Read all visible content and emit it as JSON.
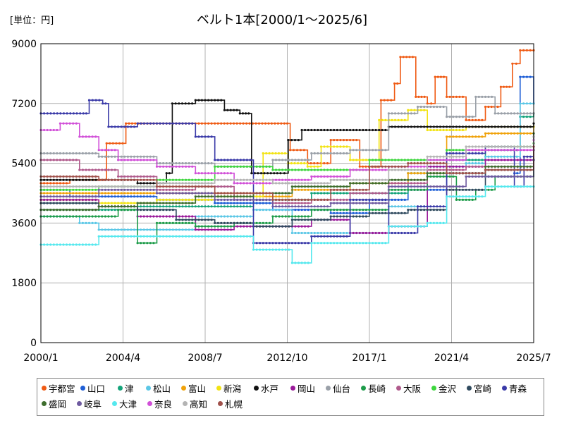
{
  "unit_label": "[単位：円]",
  "title": "ベルト1本[2000/1～2025/6]",
  "chart_data": {
    "type": "line",
    "title": "ベルト1本[2000/1～2025/6]",
    "ylabel": "[単位：円]",
    "ylim": [
      0,
      9000
    ],
    "xlim": [
      2000.0,
      2025.5
    ],
    "yticks": [
      0,
      1800,
      3600,
      5400,
      7200,
      9000
    ],
    "xticks": [
      {
        "value": 2000.0,
        "label": "2000/1"
      },
      {
        "value": 2004.25,
        "label": "2004/4"
      },
      {
        "value": 2008.5,
        "label": "2008/7"
      },
      {
        "value": 2012.75,
        "label": "2012/10"
      },
      {
        "value": 2017.0,
        "label": "2017/1"
      },
      {
        "value": 2021.25,
        "label": "2021/4"
      },
      {
        "value": 2025.5,
        "label": "2025/7"
      }
    ],
    "grid": true,
    "legend_position": "bottom",
    "series": [
      {
        "name": "宇都宮",
        "color": "#ef5b14",
        "points": [
          [
            2000.0,
            4800
          ],
          [
            2001.5,
            4900
          ],
          [
            2003.4,
            6000
          ],
          [
            2004.4,
            6600
          ],
          [
            2006.0,
            6600
          ],
          [
            2009.0,
            6600
          ],
          [
            2012.6,
            6600
          ],
          [
            2012.9,
            5800
          ],
          [
            2013.8,
            5400
          ],
          [
            2015.0,
            6100
          ],
          [
            2016.5,
            5300
          ],
          [
            2017.6,
            7300
          ],
          [
            2018.3,
            7800
          ],
          [
            2018.6,
            8600
          ],
          [
            2019.4,
            7400
          ],
          [
            2020.0,
            7200
          ],
          [
            2020.4,
            8000
          ],
          [
            2021.0,
            7400
          ],
          [
            2022.0,
            6700
          ],
          [
            2023.0,
            7100
          ],
          [
            2023.8,
            7700
          ],
          [
            2024.4,
            8400
          ],
          [
            2024.8,
            8800
          ],
          [
            2025.5,
            8800
          ]
        ]
      },
      {
        "name": "山口",
        "color": "#1f5fd6",
        "points": [
          [
            2000.0,
            4600
          ],
          [
            2001.5,
            4400
          ],
          [
            2003.0,
            4400
          ],
          [
            2006.0,
            4300
          ],
          [
            2009.0,
            4200
          ],
          [
            2012.0,
            4000
          ],
          [
            2015.0,
            3900
          ],
          [
            2017.0,
            4300
          ],
          [
            2019.0,
            4600
          ],
          [
            2021.0,
            5100
          ],
          [
            2023.0,
            5000
          ],
          [
            2024.5,
            5100
          ],
          [
            2024.8,
            8000
          ],
          [
            2025.5,
            7200
          ]
        ]
      },
      {
        "name": "津",
        "color": "#14a37a",
        "points": [
          [
            2000.0,
            4000
          ],
          [
            2003.0,
            4000
          ],
          [
            2005.0,
            4100
          ],
          [
            2008.0,
            4100
          ],
          [
            2011.0,
            4300
          ],
          [
            2014.0,
            4500
          ],
          [
            2017.0,
            4500
          ],
          [
            2019.0,
            5100
          ],
          [
            2021.0,
            5500
          ],
          [
            2023.0,
            5800
          ],
          [
            2024.8,
            6800
          ],
          [
            2025.5,
            6900
          ]
        ]
      },
      {
        "name": "松山",
        "color": "#5bc7e6",
        "points": [
          [
            2000.0,
            3800
          ],
          [
            2002.0,
            3600
          ],
          [
            2003.0,
            3400
          ],
          [
            2006.0,
            3400
          ],
          [
            2008.0,
            3800
          ],
          [
            2011.0,
            4000
          ],
          [
            2013.0,
            3300
          ],
          [
            2016.0,
            3300
          ],
          [
            2018.0,
            4100
          ],
          [
            2020.0,
            5300
          ],
          [
            2022.0,
            5400
          ],
          [
            2023.0,
            5600
          ],
          [
            2024.8,
            7200
          ],
          [
            2025.5,
            7200
          ]
        ]
      },
      {
        "name": "富山",
        "color": "#f0a20a",
        "points": [
          [
            2000.0,
            4500
          ],
          [
            2004.0,
            4500
          ],
          [
            2008.0,
            4500
          ],
          [
            2011.0,
            4400
          ],
          [
            2013.0,
            4600
          ],
          [
            2016.0,
            4800
          ],
          [
            2019.0,
            5100
          ],
          [
            2021.0,
            6200
          ],
          [
            2023.0,
            6300
          ],
          [
            2025.5,
            6500
          ]
        ]
      },
      {
        "name": "新潟",
        "color": "#f2e313",
        "points": [
          [
            2000.0,
            4300
          ],
          [
            2003.0,
            4200
          ],
          [
            2006.0,
            4300
          ],
          [
            2009.0,
            4400
          ],
          [
            2011.5,
            5700
          ],
          [
            2012.8,
            5400
          ],
          [
            2013.8,
            5300
          ],
          [
            2014.5,
            5900
          ],
          [
            2016.0,
            5500
          ],
          [
            2017.5,
            6700
          ],
          [
            2019.0,
            7000
          ],
          [
            2020.0,
            6400
          ],
          [
            2022.0,
            6500
          ],
          [
            2025.5,
            6500
          ]
        ]
      },
      {
        "name": "水戸",
        "color": "#111111",
        "points": [
          [
            2000.0,
            4900
          ],
          [
            2003.5,
            4900
          ],
          [
            2005.0,
            4800
          ],
          [
            2006.5,
            5100
          ],
          [
            2006.8,
            7200
          ],
          [
            2008.0,
            7300
          ],
          [
            2009.5,
            7000
          ],
          [
            2010.3,
            6900
          ],
          [
            2010.9,
            5100
          ],
          [
            2012.4,
            5100
          ],
          [
            2012.8,
            6100
          ],
          [
            2013.5,
            6400
          ],
          [
            2016.0,
            6400
          ],
          [
            2018.0,
            6500
          ],
          [
            2020.0,
            6500
          ],
          [
            2025.5,
            6600
          ]
        ]
      },
      {
        "name": "岡山",
        "color": "#9a1a9a",
        "points": [
          [
            2000.0,
            4300
          ],
          [
            2003.0,
            4100
          ],
          [
            2005.0,
            3800
          ],
          [
            2008.0,
            3400
          ],
          [
            2010.0,
            3500
          ],
          [
            2012.0,
            3500
          ],
          [
            2014.0,
            3700
          ],
          [
            2016.0,
            3300
          ],
          [
            2018.0,
            3500
          ],
          [
            2020.0,
            5300
          ],
          [
            2023.0,
            5500
          ],
          [
            2025.5,
            6200
          ]
        ]
      },
      {
        "name": "仙台",
        "color": "#9aa0a8",
        "points": [
          [
            2000.0,
            5700
          ],
          [
            2003.0,
            5600
          ],
          [
            2006.0,
            5400
          ],
          [
            2009.0,
            5300
          ],
          [
            2012.0,
            5500
          ],
          [
            2014.0,
            5700
          ],
          [
            2016.0,
            5800
          ],
          [
            2018.0,
            6900
          ],
          [
            2019.5,
            7100
          ],
          [
            2021.0,
            6800
          ],
          [
            2022.5,
            7400
          ],
          [
            2023.5,
            6900
          ],
          [
            2025.5,
            6900
          ]
        ]
      },
      {
        "name": "長崎",
        "color": "#1e9c4a",
        "points": [
          [
            2000.0,
            3800
          ],
          [
            2002.0,
            3800
          ],
          [
            2004.0,
            4000
          ],
          [
            2005.0,
            3000
          ],
          [
            2006.0,
            3600
          ],
          [
            2008.0,
            3500
          ],
          [
            2010.0,
            3600
          ],
          [
            2012.0,
            3800
          ],
          [
            2014.0,
            4000
          ],
          [
            2016.0,
            4000
          ],
          [
            2018.0,
            4600
          ],
          [
            2020.0,
            5000
          ],
          [
            2021.5,
            4300
          ],
          [
            2022.5,
            4600
          ],
          [
            2023.5,
            5000
          ],
          [
            2025.5,
            5500
          ]
        ]
      },
      {
        "name": "大阪",
        "color": "#b05a8c",
        "points": [
          [
            2000.0,
            5500
          ],
          [
            2002.0,
            5200
          ],
          [
            2004.0,
            5000
          ],
          [
            2006.0,
            4600
          ],
          [
            2008.0,
            4700
          ],
          [
            2010.0,
            4300
          ],
          [
            2012.0,
            4200
          ],
          [
            2014.0,
            4300
          ],
          [
            2016.0,
            4500
          ],
          [
            2018.0,
            4800
          ],
          [
            2020.0,
            5200
          ],
          [
            2022.0,
            5300
          ],
          [
            2025.5,
            6000
          ]
        ]
      },
      {
        "name": "金沢",
        "color": "#3ed63e",
        "points": [
          [
            2000.0,
            4600
          ],
          [
            2003.0,
            4700
          ],
          [
            2006.0,
            4900
          ],
          [
            2009.0,
            5300
          ],
          [
            2012.0,
            5200
          ],
          [
            2015.0,
            5200
          ],
          [
            2017.0,
            5500
          ],
          [
            2019.0,
            5500
          ],
          [
            2021.0,
            5800
          ],
          [
            2023.0,
            5900
          ],
          [
            2025.5,
            6000
          ]
        ]
      },
      {
        "name": "宮崎",
        "color": "#2f4a5e",
        "points": [
          [
            2000.0,
            4200
          ],
          [
            2003.0,
            4100
          ],
          [
            2005.0,
            4000
          ],
          [
            2007.0,
            3700
          ],
          [
            2009.0,
            3600
          ],
          [
            2011.0,
            3500
          ],
          [
            2013.0,
            3700
          ],
          [
            2015.0,
            3800
          ],
          [
            2017.0,
            3900
          ],
          [
            2019.0,
            4000
          ],
          [
            2021.0,
            4600
          ],
          [
            2023.0,
            5200
          ],
          [
            2025.5,
            5800
          ]
        ]
      },
      {
        "name": "青森",
        "color": "#3a3aa8",
        "points": [
          [
            2000.0,
            6900
          ],
          [
            2002.2,
            6900
          ],
          [
            2002.5,
            7300
          ],
          [
            2003.2,
            7200
          ],
          [
            2003.5,
            6500
          ],
          [
            2005.0,
            6600
          ],
          [
            2008.0,
            6200
          ],
          [
            2009.0,
            5500
          ],
          [
            2011.0,
            3000
          ],
          [
            2013.0,
            3000
          ],
          [
            2014.0,
            3200
          ],
          [
            2016.0,
            4300
          ],
          [
            2018.0,
            3300
          ],
          [
            2019.5,
            4100
          ],
          [
            2021.0,
            5700
          ],
          [
            2023.0,
            5900
          ],
          [
            2024.5,
            4700
          ],
          [
            2025.0,
            5600
          ],
          [
            2025.5,
            5500
          ]
        ]
      },
      {
        "name": "盛岡",
        "color": "#3e6e2e",
        "points": [
          [
            2000.0,
            4000
          ],
          [
            2003.0,
            4100
          ],
          [
            2005.0,
            4200
          ],
          [
            2008.0,
            4400
          ],
          [
            2011.0,
            4500
          ],
          [
            2013.0,
            4700
          ],
          [
            2016.0,
            4800
          ],
          [
            2018.0,
            4900
          ],
          [
            2020.0,
            5100
          ],
          [
            2023.0,
            5300
          ],
          [
            2025.5,
            6300
          ]
        ]
      },
      {
        "name": "岐阜",
        "color": "#6e5aa0",
        "points": [
          [
            2000.0,
            4400
          ],
          [
            2003.0,
            4600
          ],
          [
            2006.0,
            4500
          ],
          [
            2009.0,
            4300
          ],
          [
            2012.0,
            4100
          ],
          [
            2015.0,
            4200
          ],
          [
            2018.0,
            4700
          ],
          [
            2020.0,
            4700
          ],
          [
            2022.0,
            5000
          ],
          [
            2025.5,
            5800
          ]
        ]
      },
      {
        "name": "大津",
        "color": "#55e8ee",
        "points": [
          [
            2000.0,
            2950
          ],
          [
            2002.5,
            2950
          ],
          [
            2003.0,
            3200
          ],
          [
            2006.0,
            3200
          ],
          [
            2009.0,
            3200
          ],
          [
            2011.0,
            2800
          ],
          [
            2013.0,
            2400
          ],
          [
            2014.0,
            3000
          ],
          [
            2016.0,
            3000
          ],
          [
            2018.0,
            3500
          ],
          [
            2020.0,
            3600
          ],
          [
            2021.0,
            4400
          ],
          [
            2023.0,
            4700
          ],
          [
            2025.5,
            4700
          ]
        ]
      },
      {
        "name": "奈良",
        "color": "#d150d8",
        "points": [
          [
            2000.0,
            6400
          ],
          [
            2001.0,
            6600
          ],
          [
            2002.0,
            6200
          ],
          [
            2003.0,
            5800
          ],
          [
            2004.0,
            5500
          ],
          [
            2006.0,
            5300
          ],
          [
            2008.0,
            5100
          ],
          [
            2010.0,
            4800
          ],
          [
            2012.0,
            4900
          ],
          [
            2014.0,
            5000
          ],
          [
            2016.0,
            5200
          ],
          [
            2018.0,
            5300
          ],
          [
            2020.0,
            5500
          ],
          [
            2022.0,
            5800
          ],
          [
            2025.5,
            6100
          ]
        ]
      },
      {
        "name": "高知",
        "color": "#b4b4b4",
        "points": [
          [
            2000.0,
            4700
          ],
          [
            2003.0,
            4700
          ],
          [
            2006.0,
            4800
          ],
          [
            2009.0,
            4900
          ],
          [
            2012.0,
            4800
          ],
          [
            2015.0,
            4900
          ],
          [
            2018.0,
            5200
          ],
          [
            2020.0,
            5600
          ],
          [
            2022.0,
            5900
          ],
          [
            2025.5,
            6200
          ]
        ]
      },
      {
        "name": "札幌",
        "color": "#a0504a",
        "points": [
          [
            2000.0,
            5000
          ],
          [
            2003.0,
            4900
          ],
          [
            2006.0,
            4700
          ],
          [
            2009.0,
            4500
          ],
          [
            2012.0,
            4300
          ],
          [
            2015.0,
            4600
          ],
          [
            2017.0,
            5300
          ],
          [
            2019.0,
            5400
          ],
          [
            2021.0,
            5100
          ],
          [
            2023.0,
            5200
          ],
          [
            2025.5,
            5900
          ]
        ]
      }
    ]
  }
}
